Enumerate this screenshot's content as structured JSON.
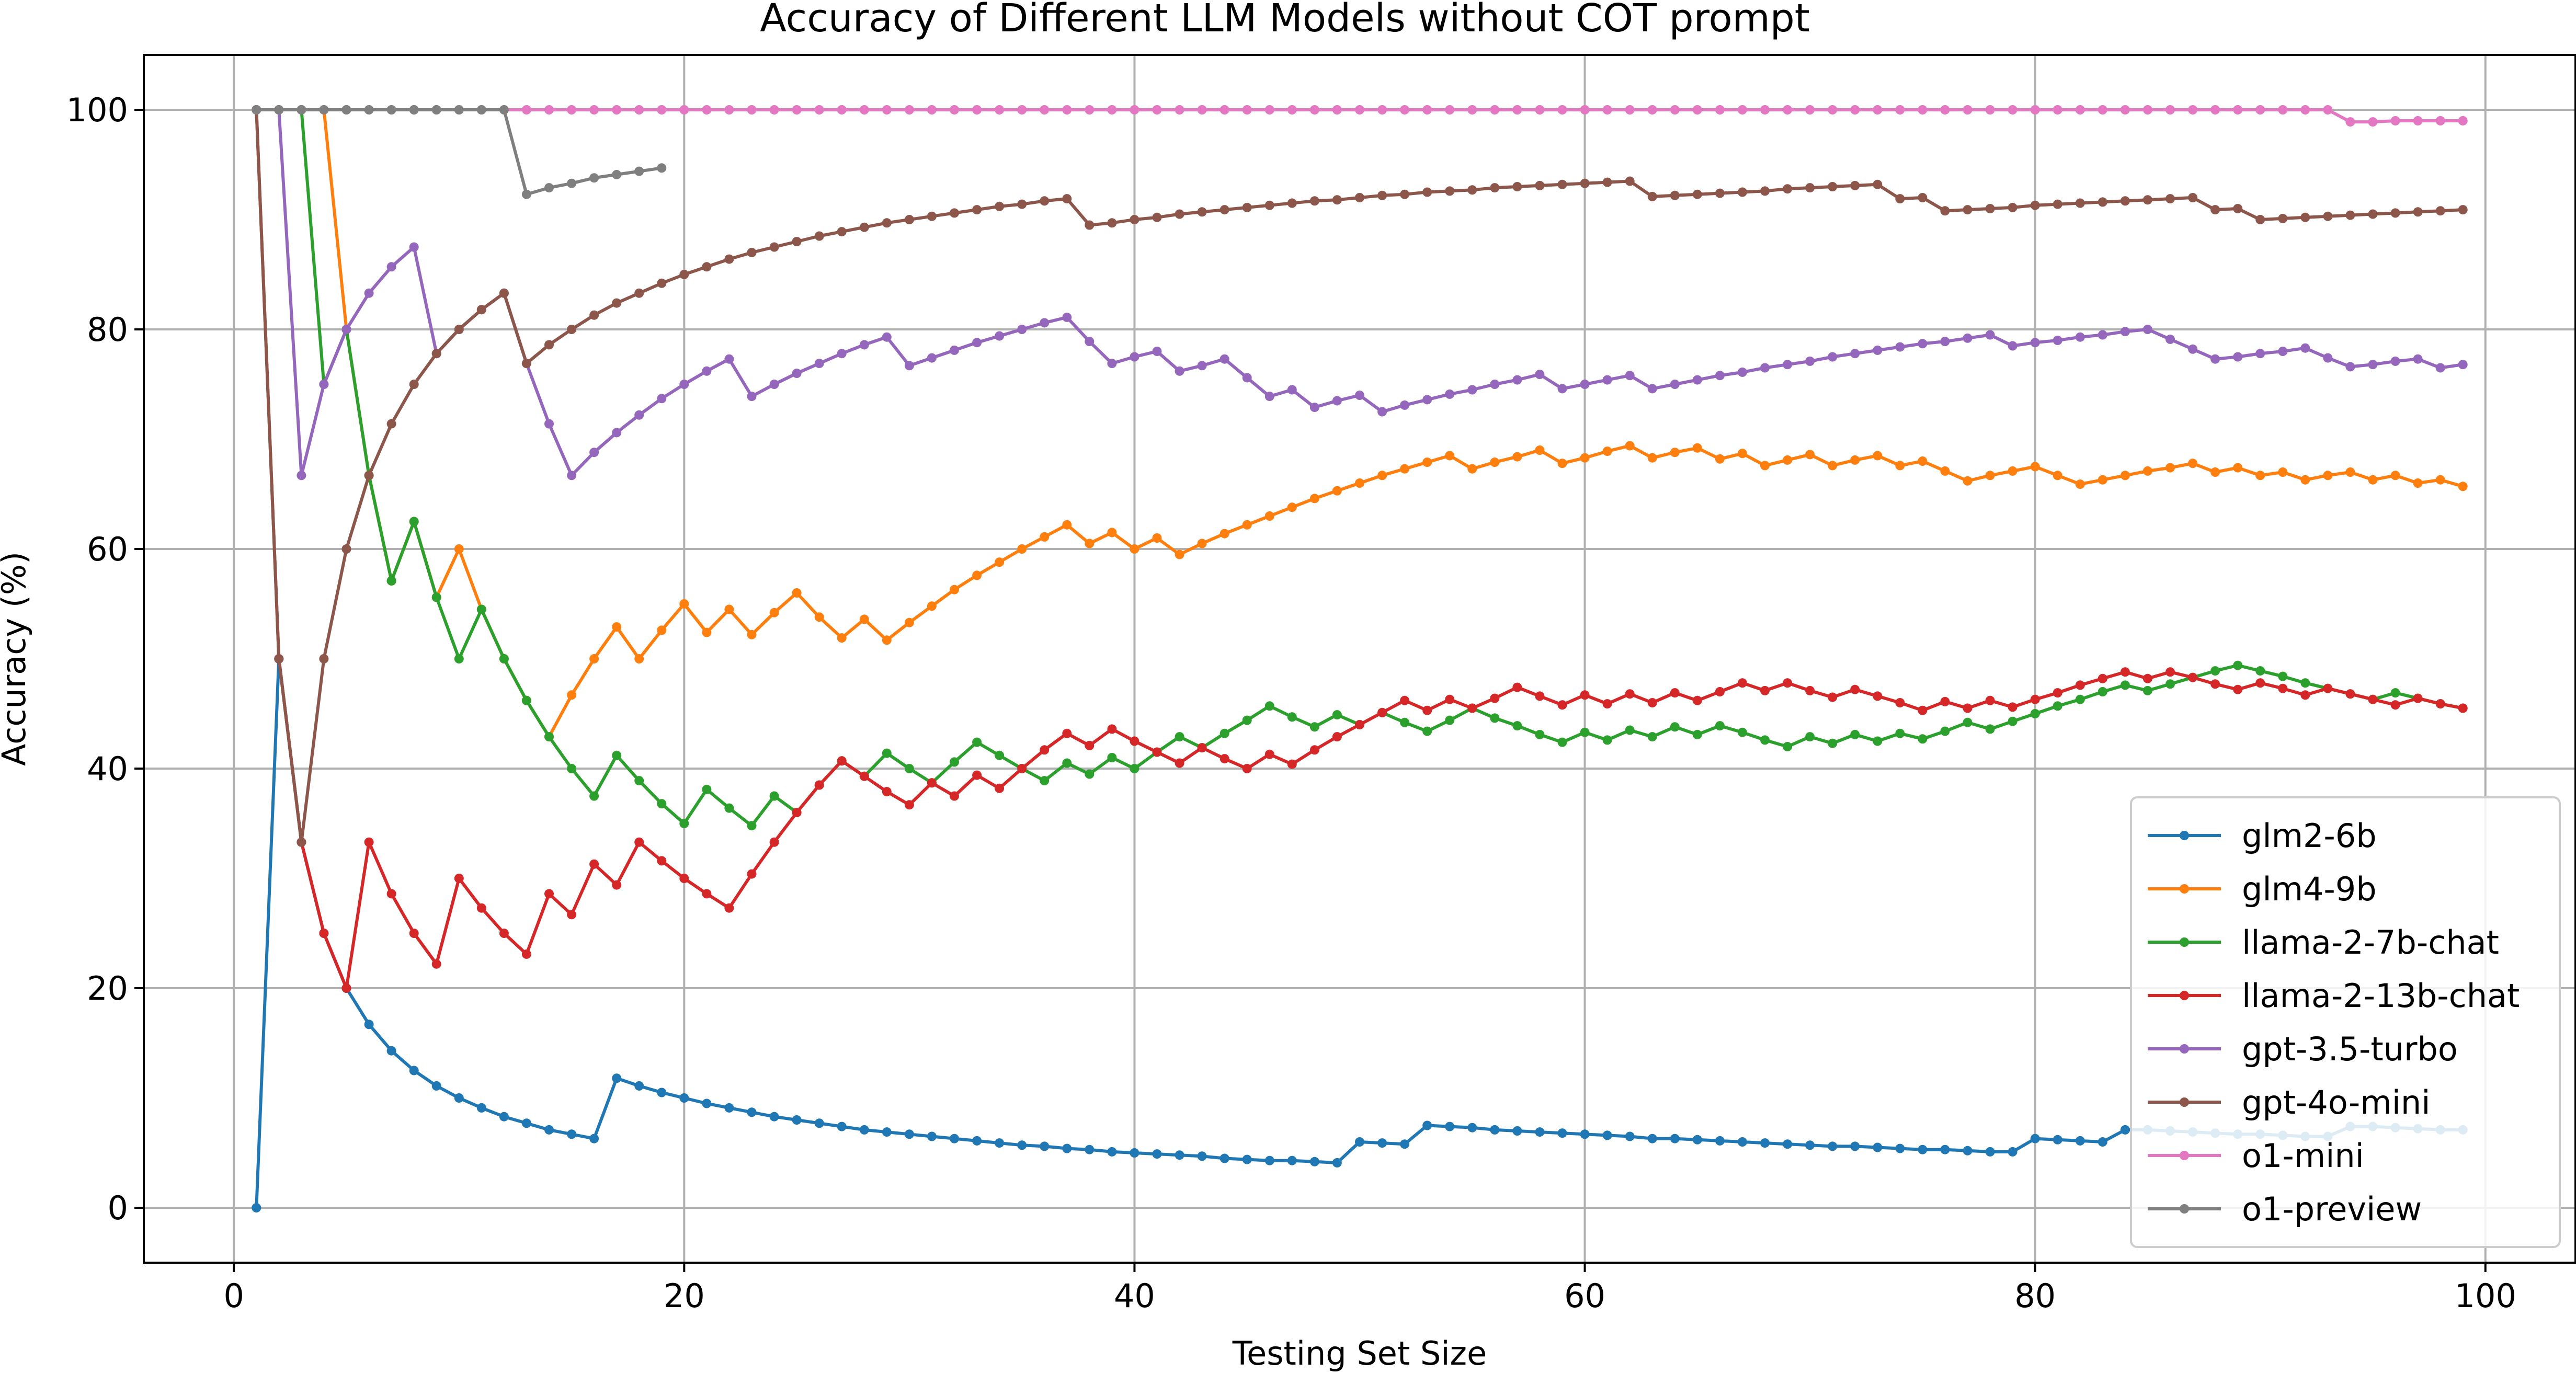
{
  "chart_data": {
    "type": "line",
    "title": "Accuracy of Different LLM Models without COT prompt",
    "xlabel": "Testing Set Size",
    "ylabel": "Accuracy (%)",
    "xlim": [
      -4,
      104
    ],
    "ylim": [
      -5,
      105
    ],
    "x_ticks": [
      0,
      20,
      40,
      60,
      80,
      100
    ],
    "y_ticks": [
      0,
      20,
      40,
      60,
      80,
      100
    ],
    "grid": true,
    "legend_position": "lower-right",
    "x_start": 1,
    "series": [
      {
        "name": "glm2-6b",
        "color": "#1f77b4",
        "values": [
          0,
          50,
          33.3,
          25,
          20,
          16.7,
          14.3,
          12.5,
          11.1,
          10,
          9.1,
          8.3,
          7.7,
          7.1,
          6.7,
          6.3,
          11.8,
          11.1,
          10.5,
          10,
          9.5,
          9.1,
          8.7,
          8.3,
          8,
          7.7,
          7.4,
          7.1,
          6.9,
          6.7,
          6.5,
          6.3,
          6.1,
          5.9,
          5.7,
          5.6,
          5.4,
          5.3,
          5.1,
          5,
          4.9,
          4.8,
          4.7,
          4.5,
          4.4,
          4.3,
          4.3,
          4.2,
          4.1,
          6,
          5.9,
          5.8,
          7.5,
          7.4,
          7.3,
          7.1,
          7,
          6.9,
          6.8,
          6.7,
          6.6,
          6.5,
          6.3,
          6.3,
          6.2,
          6.1,
          6,
          5.9,
          5.8,
          5.7,
          5.6,
          5.6,
          5.5,
          5.4,
          5.3,
          5.3,
          5.2,
          5.1,
          5.1,
          6.3,
          6.2,
          6.1,
          6,
          7.1,
          7.1,
          7,
          6.9,
          6.8,
          6.7,
          6.7,
          6.6,
          6.5,
          6.5,
          7.4,
          7.4,
          7.3,
          7.2,
          7.1,
          7.1
        ]
      },
      {
        "name": "glm4-9b",
        "color": "#ff7f0e",
        "values": [
          100,
          100,
          100,
          100,
          80,
          66.7,
          57.1,
          62.5,
          55.6,
          60,
          54.5,
          50,
          46.2,
          42.9,
          46.7,
          50,
          52.9,
          50,
          52.6,
          55,
          52.4,
          54.5,
          52.2,
          54.2,
          56,
          53.8,
          51.9,
          53.6,
          51.7,
          53.3,
          54.8,
          56.3,
          57.6,
          58.8,
          60,
          61.1,
          62.2,
          60.5,
          61.5,
          60,
          61,
          59.5,
          60.5,
          61.4,
          62.2,
          63,
          63.8,
          64.6,
          65.3,
          66,
          66.7,
          67.3,
          67.9,
          68.5,
          67.3,
          67.9,
          68.4,
          69,
          67.8,
          68.3,
          68.9,
          69.4,
          68.3,
          68.8,
          69.2,
          68.2,
          68.7,
          67.6,
          68.1,
          68.6,
          67.6,
          68.1,
          68.5,
          67.6,
          68,
          67.1,
          66.2,
          66.7,
          67.1,
          67.5,
          66.7,
          65.9,
          66.3,
          66.7,
          67.1,
          67.4,
          67.8,
          67,
          67.4,
          66.7,
          67,
          66.3,
          66.7,
          67,
          66.3,
          66.7,
          66,
          66.3,
          65.7
        ]
      },
      {
        "name": "llama-2-7b-chat",
        "color": "#2ca02c",
        "values": [
          100,
          100,
          100,
          75,
          80,
          66.7,
          57.1,
          62.5,
          55.6,
          50,
          54.5,
          50,
          46.2,
          42.9,
          40,
          37.5,
          41.2,
          38.9,
          36.8,
          35,
          38.1,
          36.4,
          34.8,
          37.5,
          36,
          38.5,
          40.7,
          39.3,
          41.4,
          40,
          38.7,
          40.6,
          42.4,
          41.2,
          40,
          38.9,
          40.5,
          39.5,
          41,
          40,
          41.5,
          42.9,
          41.9,
          43.2,
          44.4,
          45.7,
          44.7,
          43.8,
          44.9,
          44,
          45.1,
          44.2,
          43.4,
          44.4,
          45.5,
          44.6,
          43.9,
          43.1,
          42.4,
          43.3,
          42.6,
          43.5,
          42.9,
          43.8,
          43.1,
          43.9,
          43.3,
          42.6,
          42,
          42.9,
          42.3,
          43.1,
          42.5,
          43.2,
          42.7,
          43.4,
          44.2,
          43.6,
          44.3,
          45,
          45.7,
          46.3,
          47,
          47.6,
          47.1,
          47.7,
          48.3,
          48.9,
          49.4,
          48.9,
          48.4,
          47.8,
          47.3,
          46.8,
          46.3,
          46.9,
          46.4,
          45.9,
          45.5
        ]
      },
      {
        "name": "llama-2-13b-chat",
        "color": "#d62728",
        "values": [
          100,
          50,
          33.3,
          25,
          20,
          33.3,
          28.6,
          25,
          22.2,
          30,
          27.3,
          25,
          23.1,
          28.6,
          26.7,
          31.3,
          29.4,
          33.3,
          31.6,
          30,
          28.6,
          27.3,
          30.4,
          33.3,
          36,
          38.5,
          40.7,
          39.3,
          37.9,
          36.7,
          38.7,
          37.5,
          39.4,
          38.2,
          40,
          41.7,
          43.2,
          42.1,
          43.6,
          42.5,
          41.5,
          40.5,
          41.9,
          40.9,
          40,
          41.3,
          40.4,
          41.7,
          42.9,
          44,
          45.1,
          46.2,
          45.3,
          46.3,
          45.5,
          46.4,
          47.4,
          46.6,
          45.8,
          46.7,
          45.9,
          46.8,
          46,
          46.9,
          46.2,
          47,
          47.8,
          47.1,
          47.8,
          47.1,
          46.5,
          47.2,
          46.6,
          46,
          45.3,
          46.1,
          45.5,
          46.2,
          45.6,
          46.3,
          46.9,
          47.6,
          48.2,
          48.8,
          48.2,
          48.8,
          48.3,
          47.7,
          47.2,
          47.8,
          47.3,
          46.7,
          47.3,
          46.8,
          46.3,
          45.8,
          46.4,
          45.9,
          45.5
        ]
      },
      {
        "name": "gpt-3.5-turbo",
        "color": "#9467bd",
        "values": [
          100,
          100,
          66.7,
          75,
          80,
          83.3,
          85.7,
          87.5,
          77.8,
          80,
          81.8,
          83.3,
          76.9,
          71.4,
          66.7,
          68.8,
          70.6,
          72.2,
          73.7,
          75,
          76.2,
          77.3,
          73.9,
          75,
          76,
          76.9,
          77.8,
          78.6,
          79.3,
          76.7,
          77.4,
          78.1,
          78.8,
          79.4,
          80,
          80.6,
          81.1,
          78.9,
          76.9,
          77.5,
          78,
          76.2,
          76.7,
          77.3,
          75.6,
          73.9,
          74.5,
          72.9,
          73.5,
          74,
          72.5,
          73.1,
          73.6,
          74.1,
          74.5,
          75,
          75.4,
          75.9,
          74.6,
          75,
          75.4,
          75.8,
          74.6,
          75,
          75.4,
          75.8,
          76.1,
          76.5,
          76.8,
          77.1,
          77.5,
          77.8,
          78.1,
          78.4,
          78.7,
          78.9,
          79.2,
          79.5,
          78.5,
          78.8,
          79,
          79.3,
          79.5,
          79.8,
          80,
          79.1,
          78.2,
          77.3,
          77.5,
          77.8,
          78,
          78.3,
          77.4,
          76.6,
          76.8,
          77.1,
          77.3,
          76.5,
          76.8
        ]
      },
      {
        "name": "gpt-4o-mini",
        "color": "#8c564b",
        "values": [
          100,
          50,
          33.3,
          50,
          60,
          66.7,
          71.4,
          75,
          77.8,
          80,
          81.8,
          83.3,
          76.9,
          78.6,
          80,
          81.3,
          82.4,
          83.3,
          84.2,
          85,
          85.7,
          86.4,
          87,
          87.5,
          88,
          88.5,
          88.9,
          89.3,
          89.7,
          90,
          90.3,
          90.6,
          90.9,
          91.2,
          91.4,
          91.7,
          91.9,
          89.5,
          89.7,
          90,
          90.2,
          90.5,
          90.7,
          90.9,
          91.1,
          91.3,
          91.5,
          91.7,
          91.8,
          92,
          92.2,
          92.3,
          92.5,
          92.6,
          92.7,
          92.9,
          93,
          93.1,
          93.2,
          93.3,
          93.4,
          93.5,
          92.1,
          92.2,
          92.3,
          92.4,
          92.5,
          92.6,
          92.8,
          92.9,
          93,
          93.1,
          93.2,
          91.9,
          92,
          90.8,
          90.9,
          91,
          91.1,
          91.3,
          91.4,
          91.5,
          91.6,
          91.7,
          91.8,
          91.9,
          92,
          90.9,
          91,
          90,
          90.1,
          90.2,
          90.3,
          90.4,
          90.5,
          90.6,
          90.7,
          90.8,
          90.9
        ]
      },
      {
        "name": "o1-mini",
        "color": "#e377c2",
        "values": [
          100,
          100,
          100,
          100,
          100,
          100,
          100,
          100,
          100,
          100,
          100,
          100,
          100,
          100,
          100,
          100,
          100,
          100,
          100,
          100,
          100,
          100,
          100,
          100,
          100,
          100,
          100,
          100,
          100,
          100,
          100,
          100,
          100,
          100,
          100,
          100,
          100,
          100,
          100,
          100,
          100,
          100,
          100,
          100,
          100,
          100,
          100,
          100,
          100,
          100,
          100,
          100,
          100,
          100,
          100,
          100,
          100,
          100,
          100,
          100,
          100,
          100,
          100,
          100,
          100,
          100,
          100,
          100,
          100,
          100,
          100,
          100,
          100,
          100,
          100,
          100,
          100,
          100,
          100,
          100,
          100,
          100,
          100,
          100,
          100,
          100,
          100,
          100,
          100,
          100,
          100,
          100,
          100,
          98.9,
          98.9,
          99,
          99,
          99,
          99
        ]
      },
      {
        "name": "o1-preview",
        "color": "#7f7f7f",
        "values": [
          100,
          100,
          100,
          100,
          100,
          100,
          100,
          100,
          100,
          100,
          100,
          100,
          92.3,
          92.9,
          93.3,
          93.8,
          94.1,
          94.4,
          94.7
        ]
      }
    ]
  }
}
